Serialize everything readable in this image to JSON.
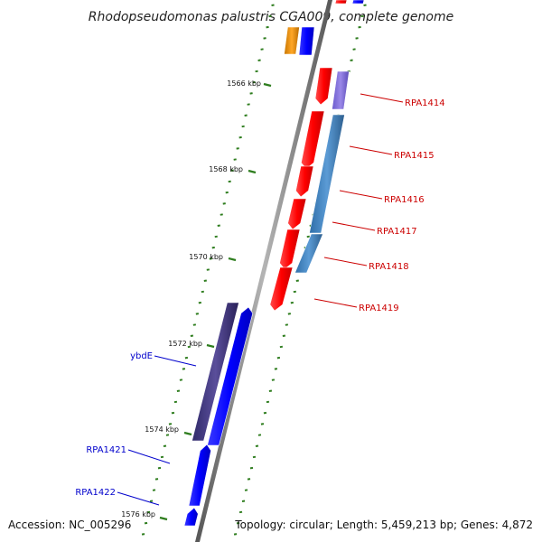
{
  "title": "Rhodopseudomonas palustris CGA009, complete genome",
  "footer": {
    "accession": "Accession: NC_005296",
    "topology": "Topology: circular; Length: 5,459,213 bp; Genes: 4,872"
  },
  "colors": {
    "backbone": "#8a8a8a",
    "tick": "#2e7d1e",
    "label_forward": "#0000cc",
    "label_reverse": "#cc0000"
  },
  "kbp_labels": [
    "1566 kbp",
    "1568 kbp",
    "1570 kbp",
    "1572 kbp",
    "1574 kbp",
    "1576 kbp"
  ],
  "gene_labels": [
    {
      "name": "RPA1414",
      "strand": "reverse"
    },
    {
      "name": "RPA1415",
      "strand": "reverse"
    },
    {
      "name": "RPA1416",
      "strand": "reverse"
    },
    {
      "name": "RPA1417",
      "strand": "reverse"
    },
    {
      "name": "RPA1418",
      "strand": "reverse"
    },
    {
      "name": "RPA1419",
      "strand": "reverse"
    },
    {
      "name": "ybdE",
      "strand": "forward"
    },
    {
      "name": "RPA1421",
      "strand": "forward"
    },
    {
      "name": "RPA1422",
      "strand": "forward"
    }
  ]
}
